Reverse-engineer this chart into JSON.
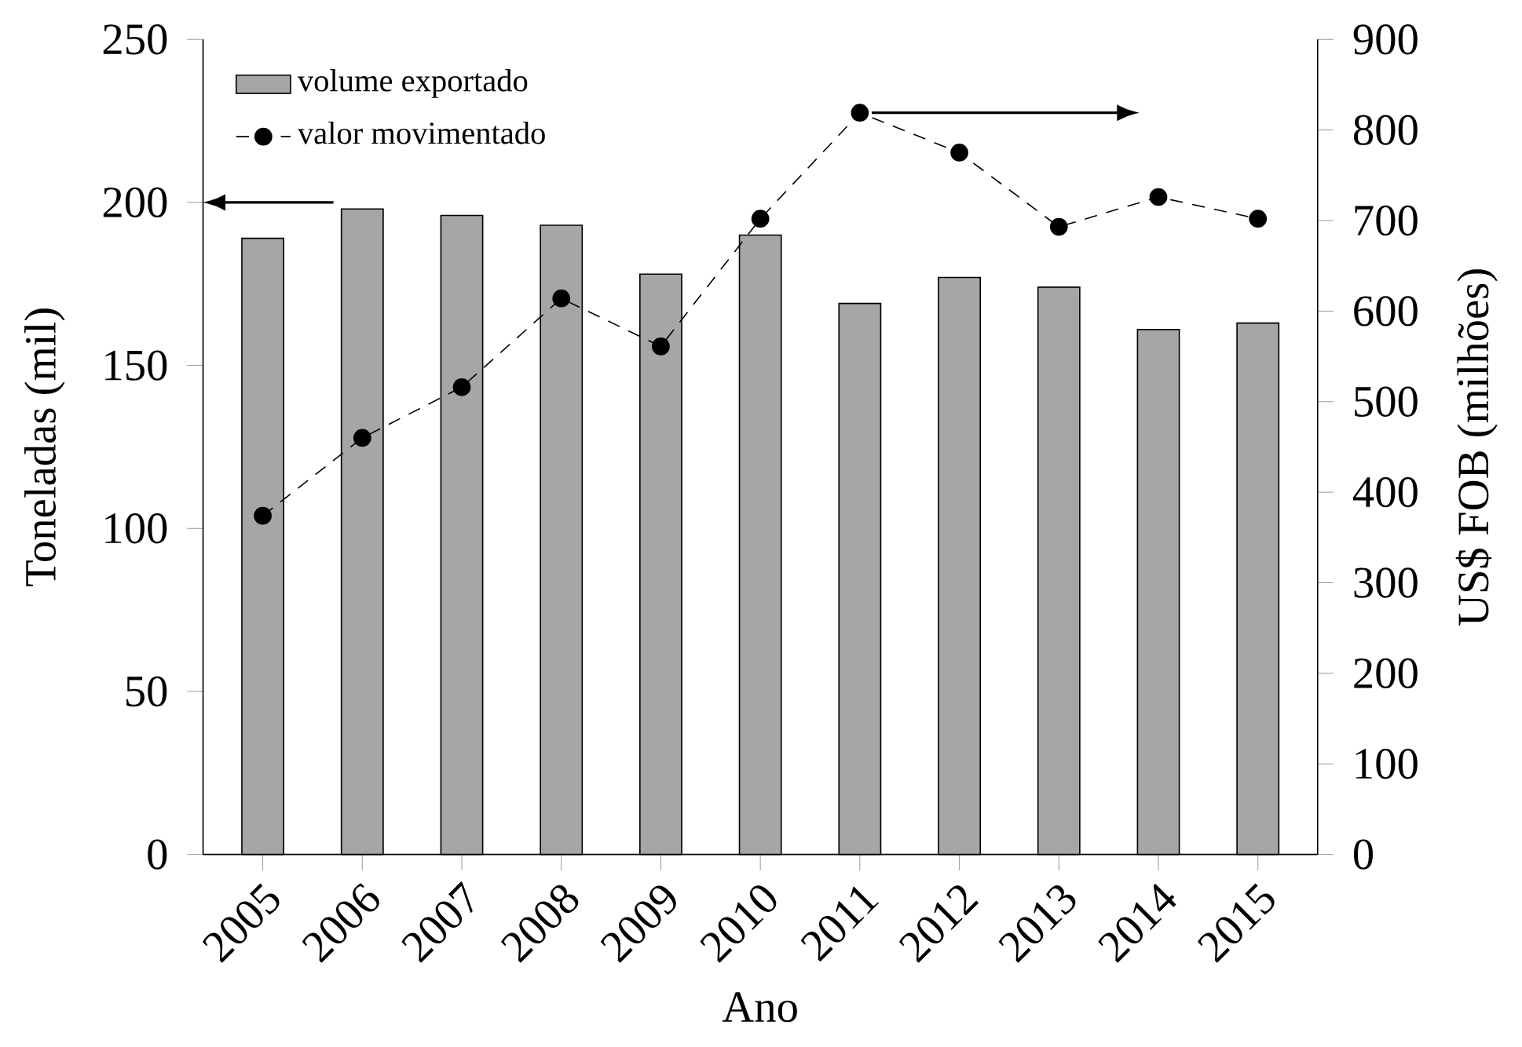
{
  "chart_data": {
    "type": "bar",
    "xlabel": "Ano",
    "ylabel": "Toneladas  (mil)",
    "y2label": "US$ FOB  (milhões)",
    "categories": [
      "2005",
      "2006",
      "2007",
      "2008",
      "2009",
      "2010",
      "2011",
      "2012",
      "2013",
      "2014",
      "2015"
    ],
    "series": [
      {
        "name": "volume exportado",
        "color": "#a6a6a6",
        "values": [
          189,
          198,
          196,
          193,
          178,
          190,
          169,
          177,
          174,
          161,
          163
        ]
      },
      {
        "name": "valor movimentado",
        "type": "line",
        "axis": "y2",
        "color": "#000000",
        "marker": "circle",
        "line_style": "dashed",
        "values": [
          374,
          460,
          516,
          614,
          561,
          702,
          819,
          775,
          693,
          726,
          702
        ]
      }
    ],
    "ylim": [
      0,
      250
    ],
    "yticks": [
      0,
      50,
      100,
      150,
      200,
      250
    ],
    "y2lim": [
      0,
      900
    ],
    "y2ticks": [
      0,
      100,
      200,
      300,
      400,
      500,
      600,
      700,
      800,
      900
    ],
    "legend": "top left",
    "grid": false
  }
}
